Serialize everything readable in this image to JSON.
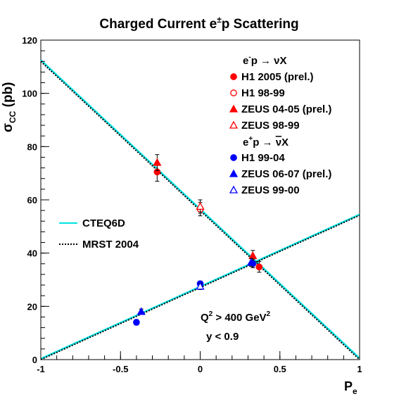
{
  "chart_data": {
    "type": "scatter",
    "title_pre": "Charged Current e",
    "title_sup": "±",
    "title_post": "p Scattering",
    "xlabel": "P",
    "xlabel_sub": "e",
    "ylabel_sigma": "σ",
    "ylabel_sub": "CC",
    "ylabel_unit": "(pb)",
    "xlim": [
      -1,
      1
    ],
    "ylim": [
      0,
      120
    ],
    "x_ticks": [
      -1,
      -0.5,
      0,
      0.5,
      1
    ],
    "x_tick_labels": [
      "-1",
      "-0.5",
      "0",
      "0.5",
      "1"
    ],
    "y_ticks": [
      0,
      20,
      40,
      60,
      80,
      100,
      120
    ],
    "y_tick_labels": [
      "0",
      "20",
      "40",
      "60",
      "80",
      "100",
      "120"
    ],
    "legend_header_em": {
      "pre": "e",
      "sup": "-",
      "post": "p → νX"
    },
    "legend_header_ep": {
      "pre": "e",
      "sup": "+",
      "post": "p → ",
      "bar": "ν",
      "tail": "X"
    },
    "colors": {
      "electron": "#ff0000",
      "positron": "#0000ff",
      "cteq": "#00e5e5",
      "mrst": "#000000"
    },
    "series": [
      {
        "name": "H1 2005 (prel.)",
        "group": "em",
        "marker": "circle",
        "filled": true,
        "color": "#ff0000",
        "points": [
          {
            "x": -0.27,
            "y": 70.5,
            "err": 3.5
          },
          {
            "x": 0.37,
            "y": 34.8,
            "err": 2.0
          }
        ]
      },
      {
        "name": "H1 98-99",
        "group": "em",
        "marker": "circle",
        "filled": false,
        "color": "#ff0000",
        "points": [
          {
            "x": 0.0,
            "y": 56.5,
            "err": 2.5
          }
        ]
      },
      {
        "name": "ZEUS 04-05 (prel.)",
        "group": "em",
        "marker": "triangle",
        "filled": true,
        "color": "#ff0000",
        "points": [
          {
            "x": -0.27,
            "y": 74.0,
            "err": 3.0
          },
          {
            "x": 0.33,
            "y": 39.0,
            "err": 2.0
          }
        ]
      },
      {
        "name": "ZEUS 98-99",
        "group": "em",
        "marker": "triangle",
        "filled": false,
        "color": "#ff0000",
        "points": [
          {
            "x": 0.0,
            "y": 57.5,
            "err": 2.5
          }
        ]
      },
      {
        "name": "H1 99-04",
        "group": "ep",
        "marker": "circle",
        "filled": true,
        "color": "#0000ff",
        "points": [
          {
            "x": -0.4,
            "y": 14.0,
            "err": 1.0
          },
          {
            "x": 0.0,
            "y": 28.5,
            "err": 1.0
          },
          {
            "x": 0.33,
            "y": 36.0,
            "err": 1.5
          }
        ]
      },
      {
        "name": "ZEUS 06-07 (prel.)",
        "group": "ep",
        "marker": "triangle",
        "filled": true,
        "color": "#0000ff",
        "points": [
          {
            "x": -0.37,
            "y": 18.0,
            "err": 1.0
          },
          {
            "x": 0.32,
            "y": 36.5,
            "err": 1.5
          }
        ]
      },
      {
        "name": "ZEUS 99-00",
        "group": "ep",
        "marker": "triangle",
        "filled": false,
        "color": "#0000ff",
        "points": [
          {
            "x": 0.0,
            "y": 27.5,
            "err": 1.2
          }
        ]
      }
    ],
    "curves": [
      {
        "name": "CTEQ6D",
        "style": "solid",
        "color": "#00e5e5",
        "segments": [
          {
            "x": [
              -1,
              1
            ],
            "y": [
              112.5,
              0.5
            ]
          },
          {
            "x": [
              -1,
              1
            ],
            "y": [
              0.3,
              54.5
            ]
          }
        ]
      },
      {
        "name": "MRST 2004",
        "style": "dotted",
        "color": "#000000",
        "segments": [
          {
            "x": [
              -1,
              1
            ],
            "y": [
              112.0,
              0.0
            ]
          },
          {
            "x": [
              -1,
              1
            ],
            "y": [
              0.0,
              54.2
            ]
          }
        ]
      }
    ],
    "annotation_q2": {
      "pre": "Q",
      "sup1": "2",
      "mid": " > 400 GeV",
      "sup2": "2"
    },
    "annotation_y": "y < 0.9"
  }
}
